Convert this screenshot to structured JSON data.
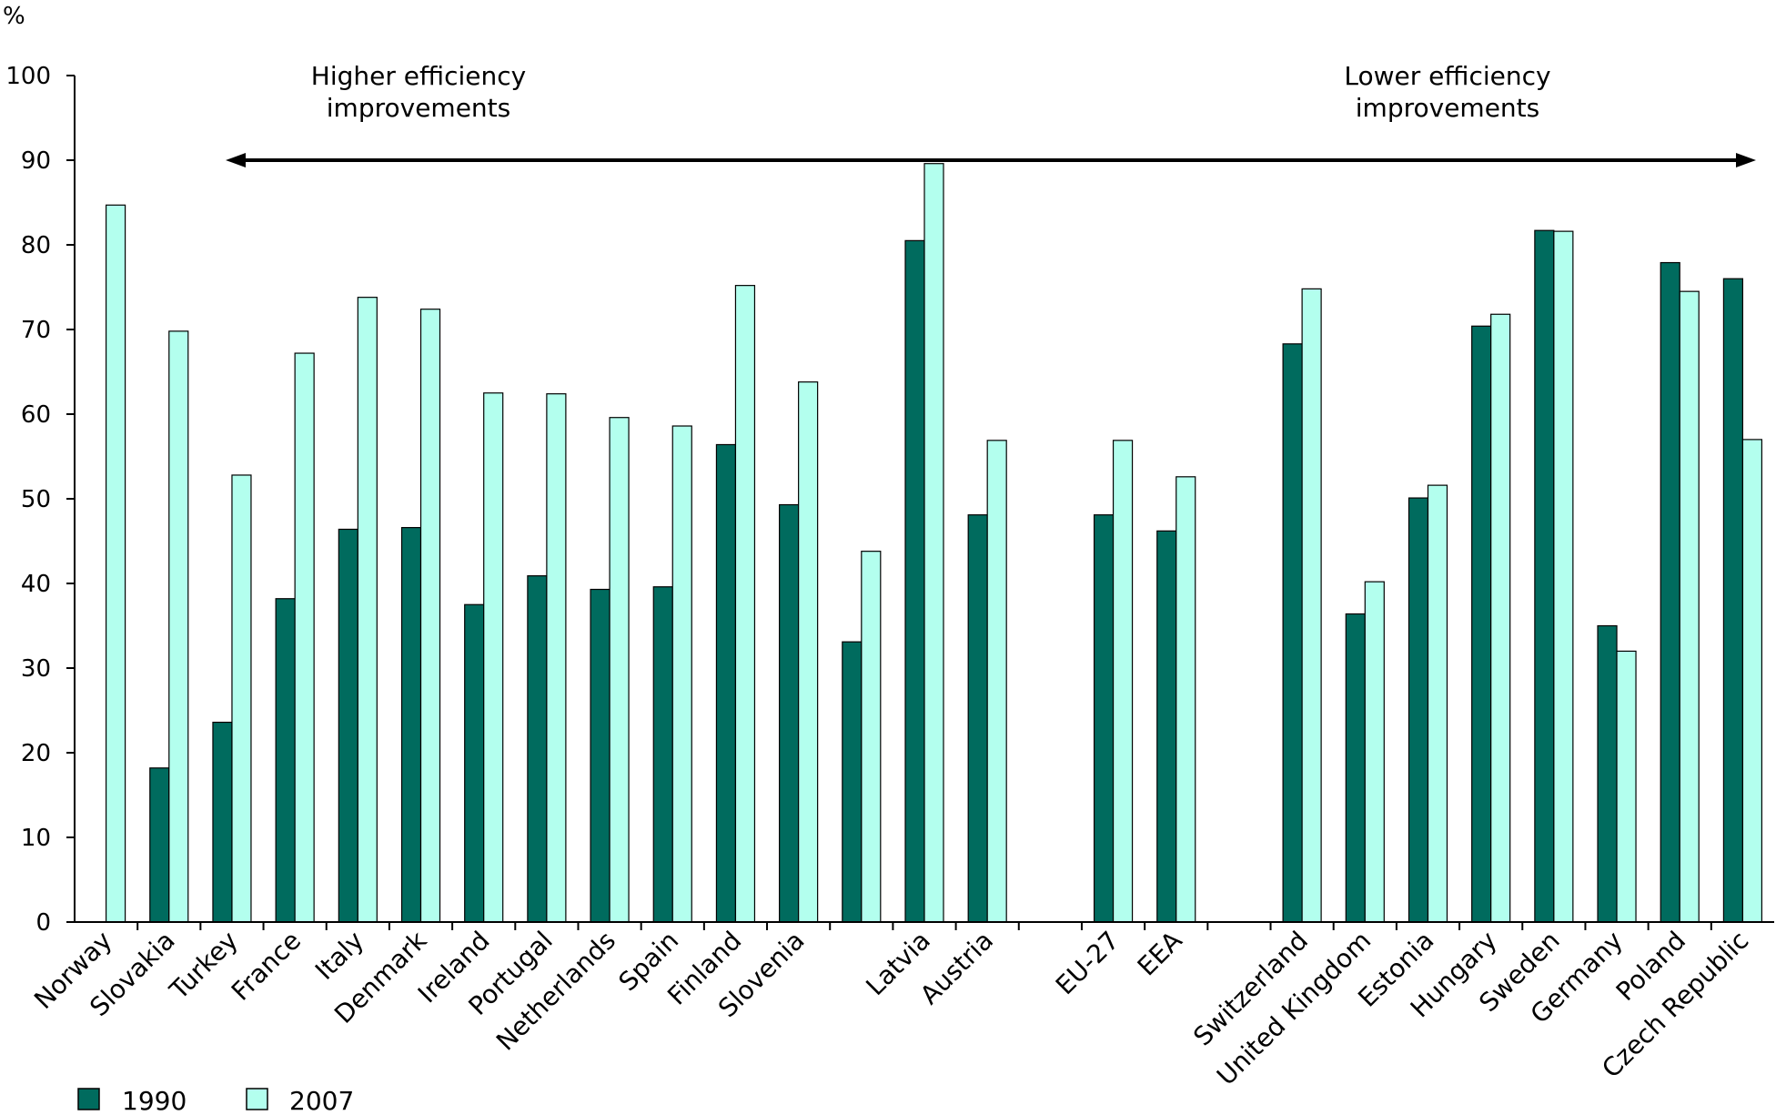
{
  "chart_data": {
    "type": "bar",
    "title": "",
    "xlabel": "",
    "ylabel": "%",
    "ylim": [
      0,
      100
    ],
    "yticks": [
      0,
      10,
      20,
      30,
      40,
      50,
      60,
      70,
      80,
      90,
      100
    ],
    "grid": false,
    "legend_position": "bottom-left",
    "categories": [
      "Norway",
      "Slovakia",
      "Turkey",
      "France",
      "Italy",
      "Denmark",
      "Ireland",
      "Portugal",
      "Netherlands",
      "Spain",
      "Finland",
      "Slovenia",
      "",
      "Latvia",
      "Austria",
      "",
      "EU-27",
      "EEA",
      "",
      "Switzerland",
      "United Kingdom",
      "Estonia",
      "Hungary",
      "Sweden",
      "Germany",
      "Poland",
      "Czech Republic"
    ],
    "series": [
      {
        "name": "1990",
        "color": "#006B5E",
        "values": [
          null,
          18.2,
          23.6,
          38.2,
          46.4,
          46.6,
          37.5,
          40.9,
          39.3,
          39.6,
          56.4,
          49.3,
          33.1,
          80.5,
          48.1,
          null,
          48.1,
          46.2,
          null,
          68.3,
          36.4,
          50.1,
          70.4,
          81.7,
          35.0,
          77.9,
          76.0
        ]
      },
      {
        "name": "2007",
        "color": "#B3FFEE",
        "values": [
          84.7,
          69.8,
          52.8,
          67.2,
          73.8,
          72.4,
          62.5,
          62.4,
          59.6,
          58.6,
          75.2,
          63.8,
          43.8,
          89.6,
          56.9,
          null,
          56.9,
          52.6,
          null,
          74.8,
          40.2,
          51.6,
          71.8,
          81.6,
          32.0,
          74.5,
          57.0
        ]
      }
    ],
    "annotations": {
      "left": [
        "Higher efficiency",
        "improvements"
      ],
      "right": [
        "Lower efficiency",
        "improvements"
      ]
    }
  }
}
